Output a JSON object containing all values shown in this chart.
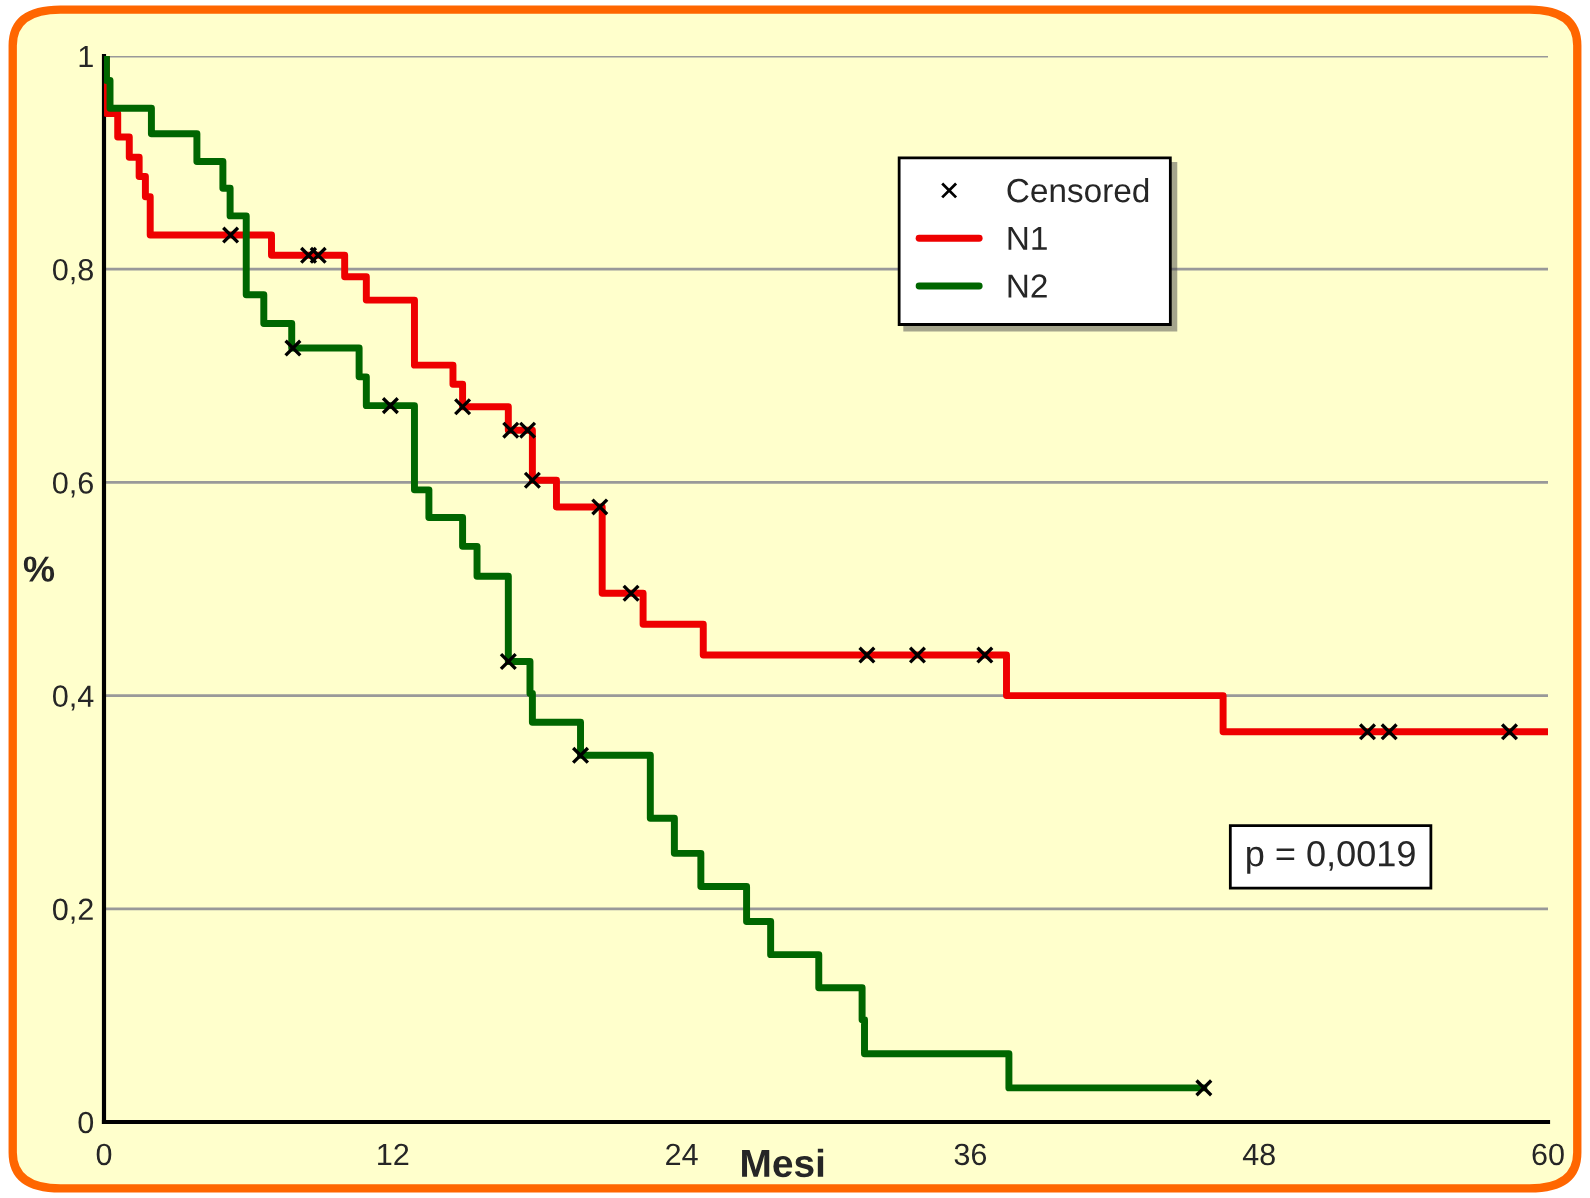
{
  "chart_data": {
    "type": "step",
    "xlabel": "Mesi",
    "ylabel": "%",
    "xlim": [
      0,
      60
    ],
    "xticks": [
      0,
      12,
      24,
      36,
      48,
      60
    ],
    "ylim": [
      0,
      1
    ],
    "yticks": [
      0,
      {
        "value": 0.2,
        "label": "0,2"
      },
      {
        "value": 0.4,
        "label": "0,4"
      },
      {
        "value": 0.6,
        "label": "0,6"
      },
      {
        "value": 0.8,
        "label": "0,8"
      },
      1
    ],
    "grid": "y",
    "legend": "top right",
    "series": [
      {
        "type": "scatter",
        "name": "Censored",
        "color": "#000000",
        "marker": "cross",
        "x": [
          5.26,
          8.5,
          8.9,
          14.9,
          16.9,
          17.6,
          17.8,
          20.6,
          21.9,
          31.7,
          33.8,
          36.6,
          52.5,
          53.4,
          58.4,
          7.85,
          11.9,
          16.8,
          19.8,
          45.7
        ],
        "values": [
          0.832,
          0.813,
          0.813,
          0.671,
          0.649,
          0.649,
          0.602,
          0.577,
          0.496,
          0.438,
          0.438,
          0.438,
          0.366,
          0.366,
          0.366,
          0.726,
          0.672,
          0.432,
          0.344,
          0.032
        ]
      },
      {
        "name": "N1",
        "color": "#ee0000",
        "x": [
          0,
          0.1,
          0.57,
          1.05,
          1.46,
          1.72,
          1.92,
          6.96,
          10.0,
          10.9,
          12.9,
          14.5,
          14.9,
          16.8,
          17.8,
          18.8,
          20.7,
          22.4,
          24.9,
          37.5,
          46.5,
          60
        ],
        "values": [
          1,
          0.946,
          0.924,
          0.905,
          0.887,
          0.868,
          0.832,
          0.813,
          0.793,
          0.771,
          0.71,
          0.692,
          0.671,
          0.649,
          0.602,
          0.577,
          0.496,
          0.467,
          0.438,
          0.4,
          0.366,
          0.366
        ]
      },
      {
        "name": "N2",
        "color": "#006600",
        "x": [
          0,
          0.1,
          0.25,
          1.97,
          3.86,
          4.94,
          5.24,
          5.91,
          6.64,
          7.8,
          10.6,
          10.9,
          12.9,
          13.5,
          14.9,
          15.5,
          16.8,
          17.7,
          17.8,
          19.8,
          22.7,
          23.7,
          24.8,
          26.7,
          27.7,
          29.7,
          31.5,
          31.6,
          37.6,
          45.7
        ],
        "values": [
          1,
          0.977,
          0.951,
          0.927,
          0.901,
          0.876,
          0.85,
          0.776,
          0.749,
          0.726,
          0.699,
          0.672,
          0.593,
          0.567,
          0.54,
          0.512,
          0.432,
          0.402,
          0.375,
          0.344,
          0.285,
          0.252,
          0.221,
          0.188,
          0.157,
          0.126,
          0.096,
          0.064,
          0.032,
          0.032
        ]
      }
    ],
    "annotations": [
      "p = 0,0019"
    ]
  }
}
